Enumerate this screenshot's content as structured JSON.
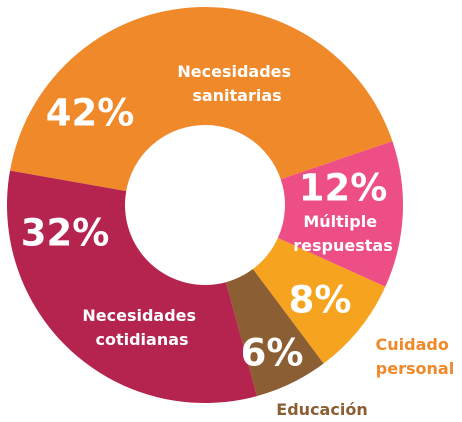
{
  "chart_data": {
    "type": "donut",
    "categories": [
      "Necesidades sanitarias",
      "Múltiple respuestas",
      "Cuidado personal",
      "Educación",
      "Necesidades cotidianas"
    ],
    "values": [
      42,
      12,
      8,
      6,
      32
    ],
    "value_labels": [
      "42%",
      "12%",
      "8%",
      "6%",
      "32%"
    ],
    "colors": [
      "#F0892A",
      "#EE4E86",
      "#F6A41F",
      "#8B5E34",
      "#B5234F"
    ]
  }
}
